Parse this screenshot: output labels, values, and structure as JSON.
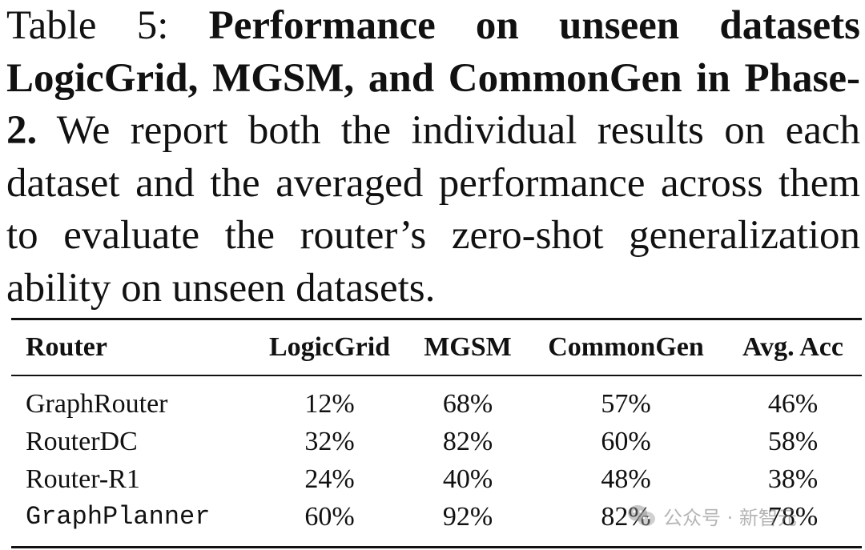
{
  "caption": {
    "label": "Table 5:",
    "title": "Performance on unseen datasets LogicGrid, MGSM, and CommonGen in Phase-2.",
    "body": "We report both the individual results on each dataset and the averaged performance across them to evaluate the router’s zero-shot generalization ability on unseen datasets."
  },
  "table": {
    "headers": [
      "Router",
      "LogicGrid",
      "MGSM",
      "CommonGen",
      "Avg. Acc"
    ],
    "rows": [
      {
        "router": "GraphRouter",
        "logicgrid": "12%",
        "mgsm": "68%",
        "commongen": "57%",
        "avg_acc": "46%"
      },
      {
        "router": "RouterDC",
        "logicgrid": "32%",
        "mgsm": "82%",
        "commongen": "60%",
        "avg_acc": "58%"
      },
      {
        "router": "Router-R1",
        "logicgrid": "24%",
        "mgsm": "40%",
        "commongen": "48%",
        "avg_acc": "38%"
      },
      {
        "router": "GraphPlanner",
        "logicgrid": "60%",
        "mgsm": "92%",
        "commongen": "82%",
        "avg_acc": "78%"
      }
    ]
  },
  "watermark": {
    "text": "公众号 · 新智元",
    "icon": "wechat-icon"
  }
}
